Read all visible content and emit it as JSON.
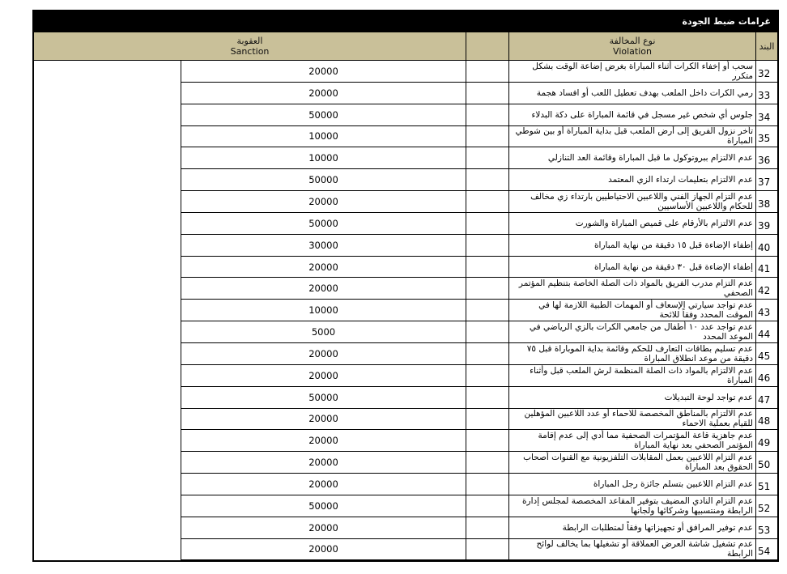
{
  "title": "غرامات ضبط الجودة",
  "header": {
    "sanction_ar": "العقوبة",
    "sanction_en": "Sanction",
    "violation_ar": "نوع المخالفة",
    "violation_en": "Violation",
    "item_no": "البند"
  },
  "rows": [
    {
      "no": "32",
      "violation": "سحب أو إخفاء الكرات أثناء المباراة بغرض إضاعة الوقت بشكل متكرر",
      "sanction": "20000"
    },
    {
      "no": "33",
      "violation": "رمي الكرات داخل الملعب بهدف تعطيل اللعب أو افساد هجمة",
      "sanction": "20000"
    },
    {
      "no": "34",
      "violation": "جلوس أي شخص غير مسجل في قائمة المباراة على دكة البدلاء",
      "sanction": "50000"
    },
    {
      "no": "35",
      "violation": "تأخر نزول الفريق إلى أرض الملعب قبل بداية المباراة أو بين شوطي المباراة",
      "sanction": "10000"
    },
    {
      "no": "36",
      "violation": "عدم الالتزام ببروتوكول ما قبل المباراة  وقائمة العد التنازلي",
      "sanction": "10000"
    },
    {
      "no": "37",
      "violation": "عدم الالتزام بتعليمات ارتداء الزي المعتمد",
      "sanction": "50000"
    },
    {
      "no": "38",
      "violation": "عدم التزام الجهاز الفني واللاعبين الاحتياطيين بارتداء زي مخالف للحكام واللاعبين الأساسيين",
      "sanction": "20000"
    },
    {
      "no": "39",
      "violation": "عدم الالتزام بالأرقام على قميص المباراة والشورت",
      "sanction": "50000"
    },
    {
      "no": "40",
      "violation": "إطفاء الإضاءة قبل ١٥ دقيقة من نهاية المباراة",
      "sanction": "30000"
    },
    {
      "no": "41",
      "violation": "إطفاء الإضاءة قبل ٣٠ دقيقة من نهاية المباراة",
      "sanction": "20000"
    },
    {
      "no": "42",
      "violation": "عدم التزام مدرب الفريق بالمواد ذات الصلة الخاصة بتنظيم المؤتمر الصحفي",
      "sanction": "20000"
    },
    {
      "no": "43",
      "violation": "عدم تواجد سيارتي الإسعاف أو المهمات الطبية اللازمة لها في الموقت المحدد وفقاً للائحة",
      "sanction": "10000"
    },
    {
      "no": "44",
      "violation": "عدم تواجد عدد ١٠ أطفال من جامعي الكرات بالزي الرياضي في الموعد المحدد",
      "sanction": "5000"
    },
    {
      "no": "45",
      "violation": "عدم تسليم بطاقات التعارف للحكم وقائمة بداية الموباراة قبل ٧٥ دقيقة من موعد انطلاق المباراة",
      "sanction": "20000"
    },
    {
      "no": "46",
      "violation": "عدم الالتزام بالمواد ذات الصلة المنظمة لرش الملعب قبل وأثناء المباراة",
      "sanction": "20000"
    },
    {
      "no": "47",
      "violation": "عدم تواجد لوحة التبديلات",
      "sanction": "50000"
    },
    {
      "no": "48",
      "violation": "عدم الالتزام بالمناطق المخصصة للاحماء أو عدد اللاعبين المؤهلين للقيام بعملية الاحماء",
      "sanction": "20000"
    },
    {
      "no": "49",
      "violation": "عدم جاهزية قاعة المؤتمرات الصحفية مما أدي إلى عدم إقامة المؤتمر الصحفي بعد نهاية المباراة",
      "sanction": "20000"
    },
    {
      "no": "50",
      "violation": "عدم التزام اللاعبين بعمل المقابلات التلفزيونية مع القنوات أصحاب الحقوق بعد المباراة",
      "sanction": "20000"
    },
    {
      "no": "51",
      "violation": "عدم التزام اللاعبين بتسلم جائزة رجل المباراة",
      "sanction": "20000"
    },
    {
      "no": "52",
      "violation": "عدم التزام النادي المضيف بتوفير المقاعد المخصصة لمجلس إدارة الرابطة ومنتسبيها وشركائها ولجانها",
      "sanction": "50000"
    },
    {
      "no": "53",
      "violation": "عدم توفير المرافق أو تجهيزاتها وفقاً لمتطلبات الرابطة",
      "sanction": "20000"
    },
    {
      "no": "54",
      "violation": "عدم تشغيل شاشة العرض العملاقة أو تشغيلها بما يخالف لوائح الرابطة",
      "sanction": "20000"
    }
  ],
  "colors": {
    "header_bg": "#C9C099",
    "title_bg": "#000000",
    "title_fg": "#ffffff",
    "border": "#000000"
  }
}
